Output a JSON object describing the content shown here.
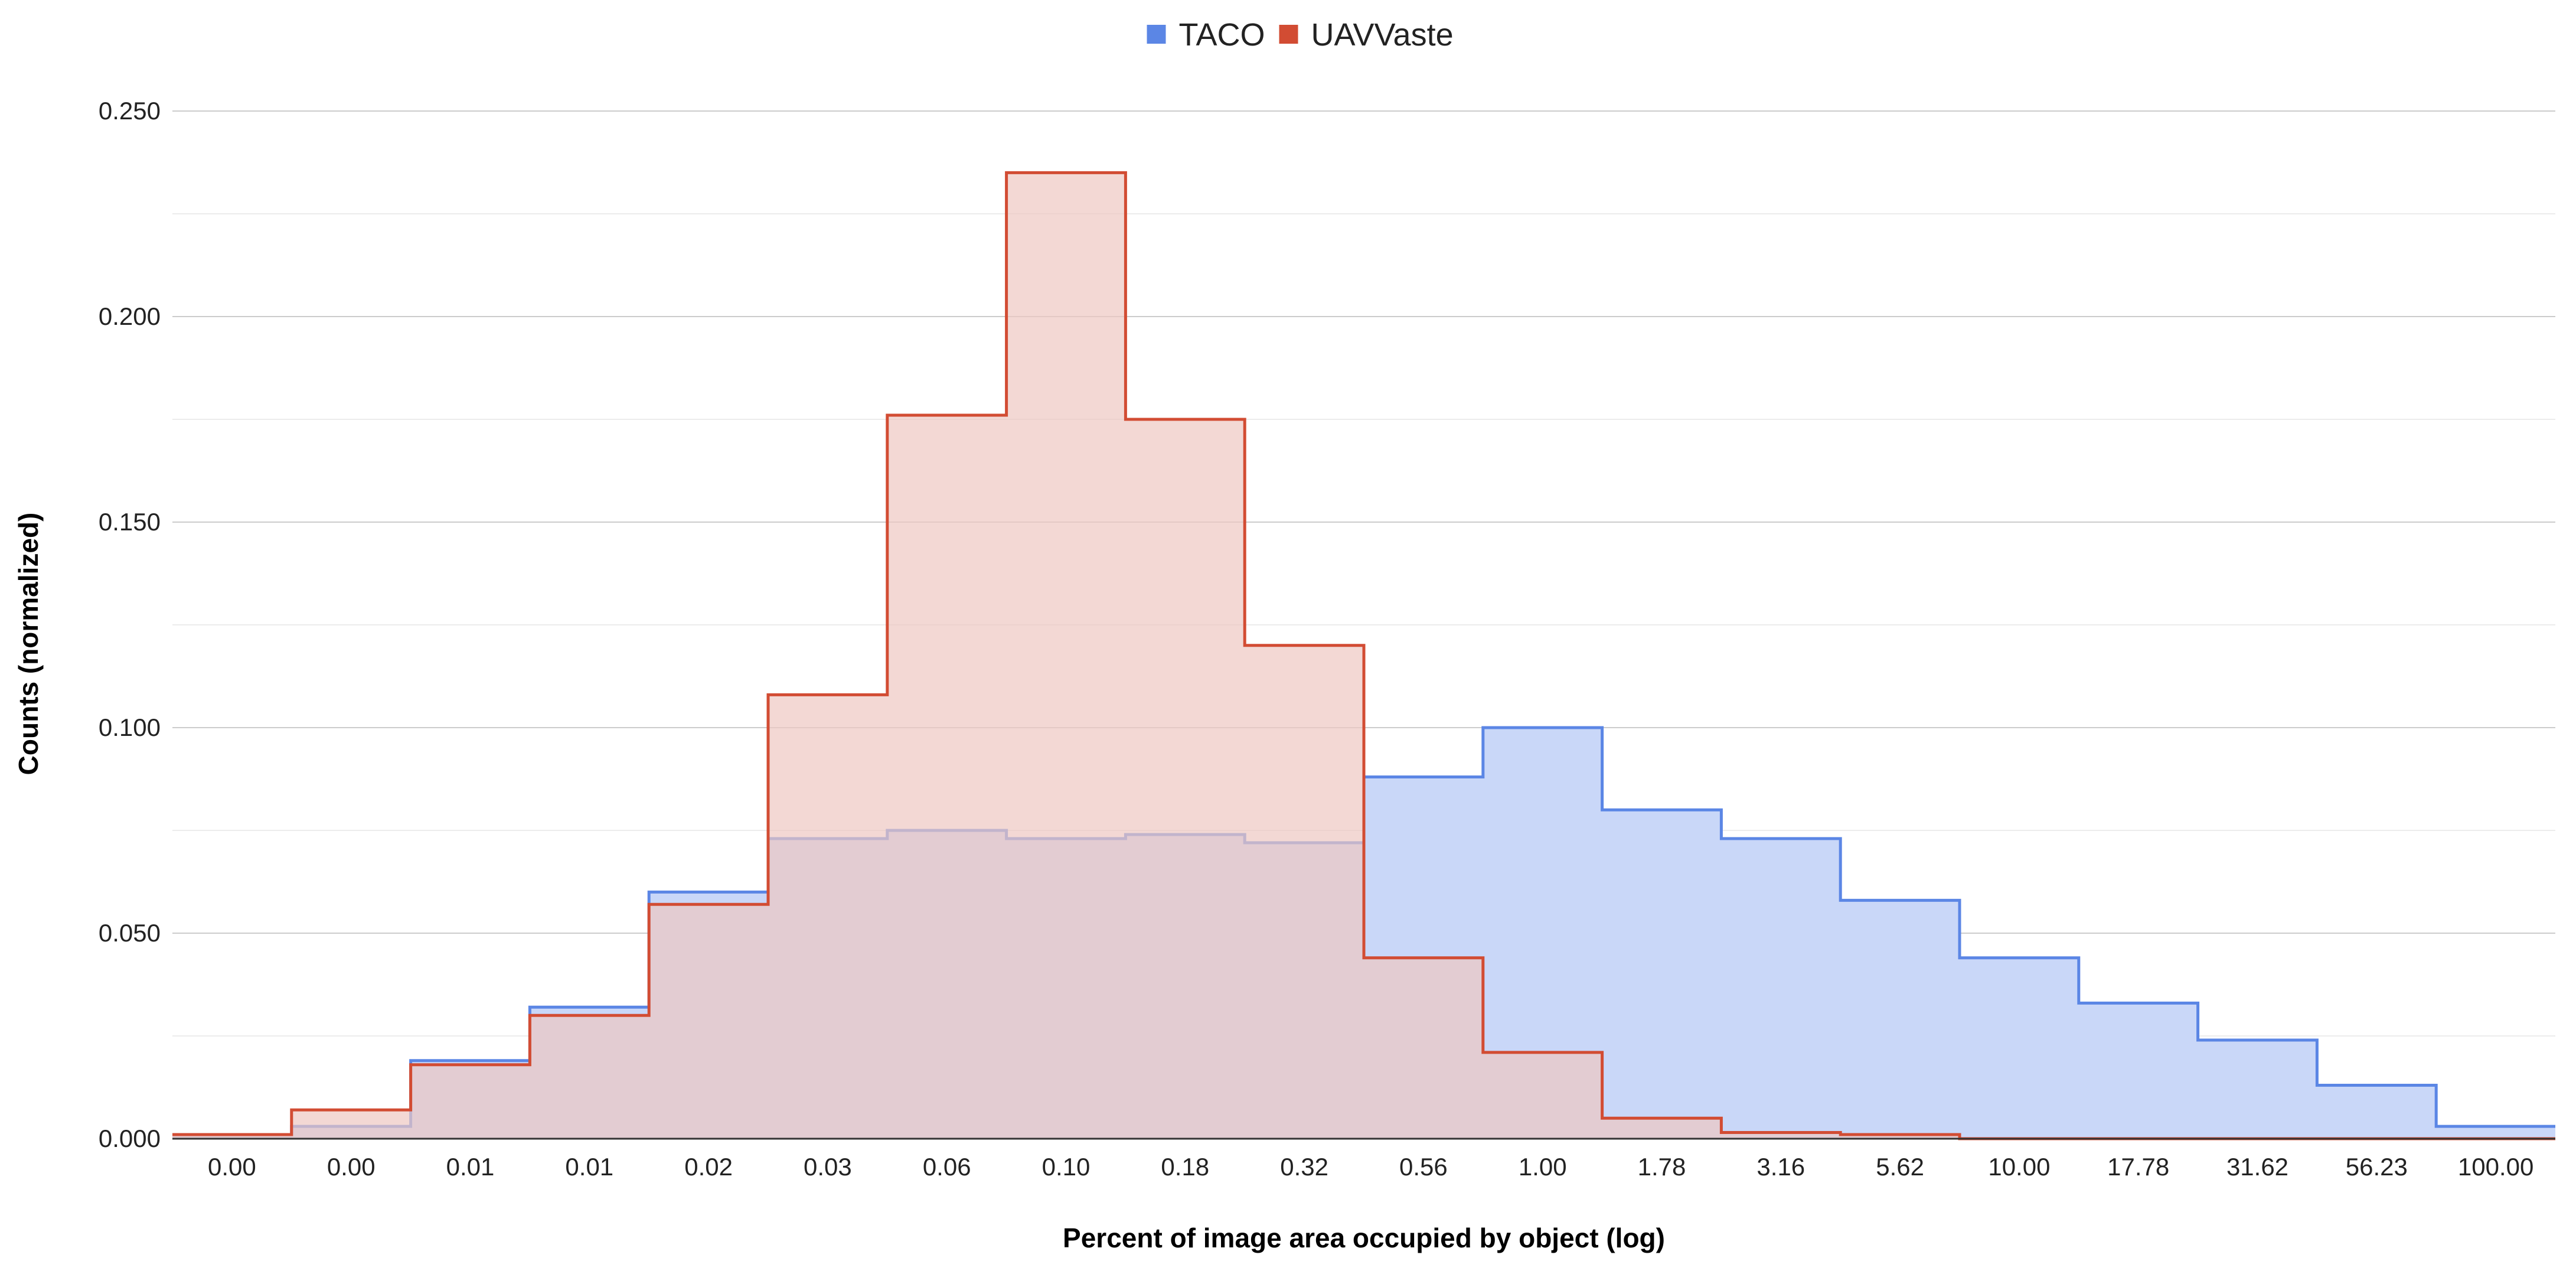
{
  "chart_data": {
    "type": "area",
    "title": "",
    "xlabel": "Percent of image area occupied by object (log)",
    "ylabel": "Counts (normalized)",
    "x_scale": "log",
    "categories": [
      "0.00",
      "0.00",
      "0.01",
      "0.01",
      "0.02",
      "0.03",
      "0.06",
      "0.10",
      "0.18",
      "0.32",
      "0.56",
      "1.00",
      "1.78",
      "3.16",
      "5.62",
      "10.00",
      "17.78",
      "31.62",
      "56.23",
      "100.00"
    ],
    "ylim": [
      0,
      0.25
    ],
    "yticks": [
      "0.000",
      "0.050",
      "0.100",
      "0.150",
      "0.200",
      "0.250"
    ],
    "ytick_values": [
      0,
      0.05,
      0.1,
      0.15,
      0.2,
      0.25
    ],
    "minor_gridlines": true,
    "legend_position": "top",
    "series": [
      {
        "name": "TACO",
        "color": "#5b86e5",
        "fill": "#c9d7f8",
        "values": [
          0.001,
          0.003,
          0.019,
          0.032,
          0.06,
          0.073,
          0.075,
          0.073,
          0.074,
          0.072,
          0.088,
          0.1,
          0.08,
          0.073,
          0.058,
          0.044,
          0.033,
          0.024,
          0.013,
          0.003
        ]
      },
      {
        "name": "UAVVaste",
        "color": "#d24c33",
        "fill": "#eec8c2",
        "values": [
          0.001,
          0.007,
          0.018,
          0.03,
          0.057,
          0.108,
          0.176,
          0.235,
          0.175,
          0.12,
          0.044,
          0.021,
          0.005,
          0.0015,
          0.001,
          0,
          0,
          0,
          0,
          0
        ]
      }
    ]
  }
}
